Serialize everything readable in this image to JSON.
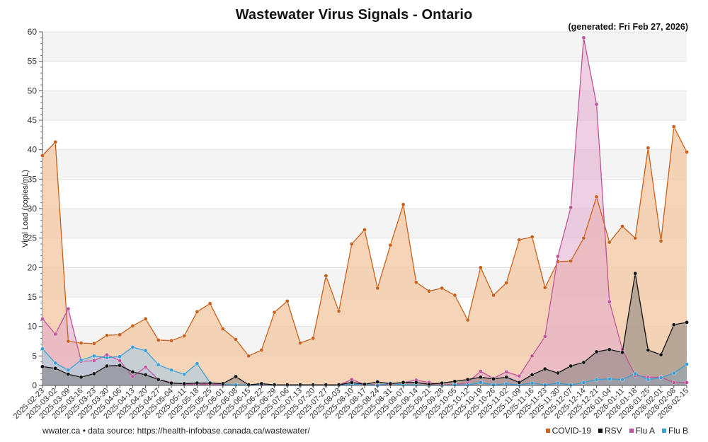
{
  "page": {
    "title": "Wastewater Virus Signals - Ontario",
    "generated": "(generated: Fri Feb 27, 2026)",
    "footer_text": "wwater.ca • data source: https://health-infobase.canada.ca/wastewater/"
  },
  "chart_data": {
    "type": "area",
    "ylabel": "Viral Load (copies/mL)",
    "ylim": [
      0,
      60
    ],
    "yticks": [
      0,
      5,
      10,
      15,
      20,
      25,
      30,
      35,
      40,
      45,
      50,
      55,
      60
    ],
    "grid": "horizontal bands",
    "legend_position": "bottom-right",
    "categories": [
      "2025-02-23",
      "2025-03-02",
      "2025-03-09",
      "2025-03-16",
      "2025-03-23",
      "2025-03-30",
      "2025-04-06",
      "2025-04-13",
      "2025-04-20",
      "2025-04-27",
      "2025-05-04",
      "2025-05-11",
      "2025-05-18",
      "2025-05-25",
      "2025-06-01",
      "2025-06-08",
      "2025-06-15",
      "2025-06-22",
      "2025-06-29",
      "2025-07-06",
      "2025-07-13",
      "2025-07-20",
      "2025-07-27",
      "2025-08-03",
      "2025-08-10",
      "2025-08-17",
      "2025-08-24",
      "2025-08-31",
      "2025-09-07",
      "2025-09-14",
      "2025-09-21",
      "2025-09-28",
      "2025-10-05",
      "2025-10-12",
      "2025-10-19",
      "2025-10-26",
      "2025-11-02",
      "2025-11-09",
      "2025-11-16",
      "2025-11-23",
      "2025-11-30",
      "2025-12-07",
      "2025-12-14",
      "2025-12-21",
      "2026-01-04",
      "2026-01-11",
      "2026-01-18",
      "2026-01-25",
      "2026-02-01",
      "2026-02-08",
      "2026-02-15"
    ],
    "series": [
      {
        "name": "COVID-19",
        "color": "#c8621c",
        "fill": "#f2c9a6",
        "fill_opacity": 0.8,
        "values": [
          39.0,
          41.3,
          7.5,
          7.2,
          7.1,
          8.5,
          8.6,
          10.1,
          11.3,
          7.7,
          7.6,
          8.4,
          12.5,
          13.9,
          9.6,
          7.8,
          5.0,
          6.0,
          12.4,
          14.3,
          7.2,
          8.0,
          18.6,
          12.6,
          24.0,
          26.4,
          16.5,
          23.8,
          30.7,
          17.5,
          16.0,
          16.5,
          15.3,
          11.1,
          20.0,
          15.3,
          17.4,
          24.7,
          25.2,
          16.6,
          21.0,
          21.1,
          25.0,
          32.0,
          24.3,
          27.0,
          25.0,
          40.3,
          24.5,
          43.9,
          39.6
        ]
      },
      {
        "name": "Flu A",
        "color": "#c0549a",
        "fill": "#e2a9cc",
        "fill_opacity": 0.55,
        "values": [
          11.3,
          8.7,
          13.0,
          4.1,
          4.2,
          5.2,
          4.2,
          1.5,
          3.1,
          1.0,
          0.5,
          0.2,
          0.2,
          0.2,
          0.1,
          0.1,
          0.1,
          0.1,
          0.1,
          0.1,
          0.0,
          0.1,
          0.0,
          0.1,
          1.0,
          0.2,
          0.1,
          0.2,
          0.5,
          0.9,
          0.5,
          0.1,
          0.2,
          0.5,
          2.4,
          1.2,
          2.3,
          1.6,
          5.0,
          8.3,
          21.9,
          30.2,
          59.0,
          47.7,
          14.2,
          6.1,
          1.7,
          1.4,
          1.4,
          0.5,
          0.5
        ]
      },
      {
        "name": "Flu B",
        "color": "#3a9fd6",
        "fill": "#a7cde4",
        "fill_opacity": 0.6,
        "values": [
          6.2,
          3.8,
          2.6,
          4.3,
          5.0,
          4.7,
          4.9,
          6.5,
          5.9,
          3.5,
          2.6,
          1.9,
          3.7,
          0.5,
          0.2,
          0.1,
          0.1,
          0.2,
          0.1,
          0.0,
          0.0,
          0.1,
          0.0,
          0.0,
          0.2,
          0.2,
          0.0,
          0.4,
          0.1,
          0.1,
          0.0,
          0.0,
          0.1,
          0.1,
          0.5,
          0.1,
          0.3,
          0.1,
          0.4,
          0.1,
          0.4,
          0.1,
          0.5,
          1.0,
          1.1,
          1.0,
          2.0,
          1.0,
          1.3,
          2.1,
          3.6
        ]
      },
      {
        "name": "RSV",
        "color": "#111111",
        "fill": "#6e6e6e",
        "fill_opacity": 0.45,
        "values": [
          3.2,
          2.9,
          1.9,
          1.4,
          2.0,
          3.3,
          3.4,
          2.3,
          1.8,
          1.0,
          0.4,
          0.3,
          0.4,
          0.4,
          0.3,
          1.5,
          0.1,
          0.3,
          0.1,
          0.1,
          0.1,
          0.1,
          0.1,
          0.1,
          0.5,
          0.2,
          0.6,
          0.3,
          0.5,
          0.5,
          0.2,
          0.4,
          0.7,
          1.0,
          1.4,
          1.1,
          1.4,
          0.5,
          1.8,
          2.8,
          2.1,
          3.3,
          3.9,
          5.7,
          6.1,
          5.6,
          19.0,
          6.0,
          5.2,
          10.3,
          10.7
        ]
      }
    ],
    "legend_order": [
      "COVID-19",
      "RSV",
      "Flu A",
      "Flu B"
    ]
  },
  "legend": [
    {
      "label": "COVID-19",
      "color": "#c8621c"
    },
    {
      "label": "RSV",
      "color": "#111111"
    },
    {
      "label": "Flu A",
      "color": "#c0549a"
    },
    {
      "label": "Flu B",
      "color": "#3a9fd6"
    }
  ]
}
